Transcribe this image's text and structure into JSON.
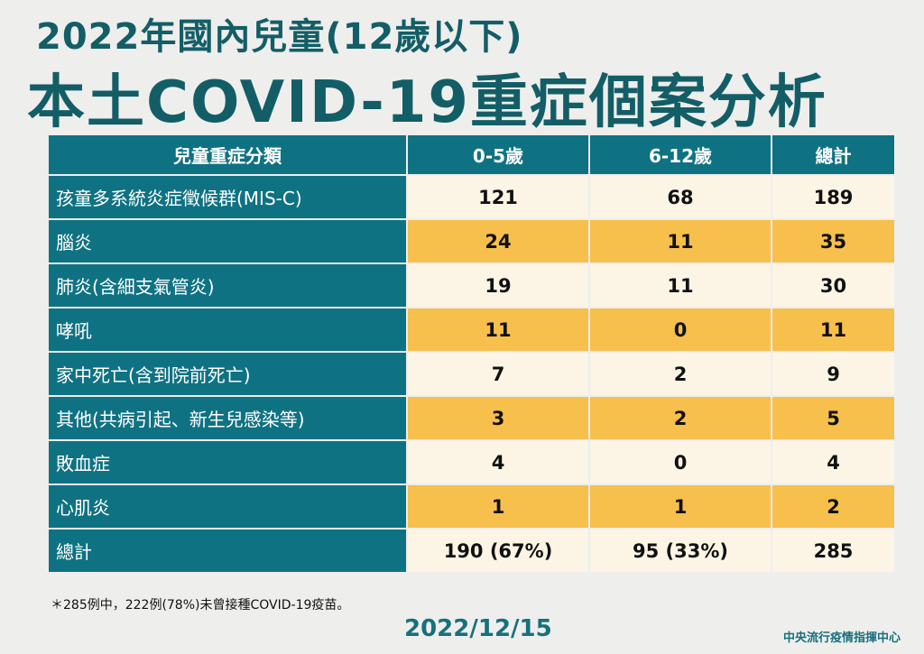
{
  "title_line1": "2022年國內兒童(12歲以下)",
  "title_line2": "本土COVID-19重症個案分析",
  "table": {
    "headers": [
      "兒童重症分類",
      "0-5歲",
      "6-12歲",
      "總計"
    ],
    "rows": [
      {
        "label": "孩童多系統炎症徵候群(MIS-C)",
        "v": [
          "121",
          "68",
          "189"
        ]
      },
      {
        "label": "腦炎",
        "v": [
          "24",
          "11",
          "35"
        ]
      },
      {
        "label": "肺炎(含細支氣管炎)",
        "v": [
          "19",
          "11",
          "30"
        ]
      },
      {
        "label": "哮吼",
        "v": [
          "11",
          "0",
          "11"
        ]
      },
      {
        "label": "家中死亡(含到院前死亡)",
        "v": [
          "7",
          "2",
          "9"
        ]
      },
      {
        "label": "其他(共病引起、新生兒感染等)",
        "v": [
          "3",
          "2",
          "5"
        ]
      },
      {
        "label": "敗血症",
        "v": [
          "4",
          "0",
          "4"
        ]
      },
      {
        "label": "心肌炎",
        "v": [
          "1",
          "1",
          "2"
        ]
      },
      {
        "label": "總計",
        "v": [
          "190 (67%)",
          "95 (33%)",
          "285"
        ]
      }
    ]
  },
  "note": "＊285例中，222例(78%)未曾接種COVID-19疫苗。",
  "date": "2022/12/15",
  "org": "中央流行疫情指揮中心",
  "colors": {
    "teal": "#0f7282",
    "title": "#135e66",
    "cream": "#fcf5e6",
    "yellow": "#f7bf4c"
  }
}
